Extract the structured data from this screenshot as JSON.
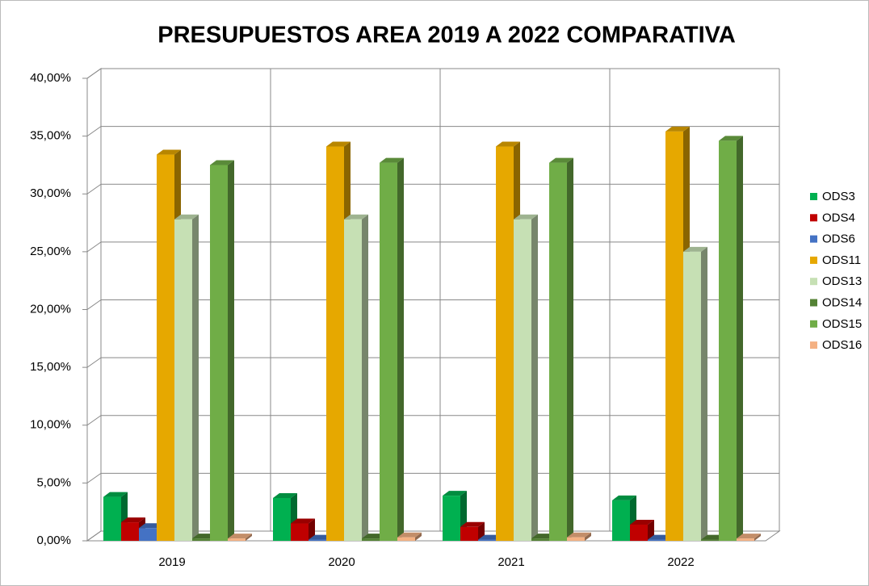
{
  "chart_data": {
    "type": "bar",
    "title": "PRESUPUESTOS AREA 2019 A 2022 COMPARATIVA",
    "categories": [
      "2019",
      "2020",
      "2021",
      "2022"
    ],
    "series": [
      {
        "name": "ODS3",
        "color": "#00b050",
        "values": [
          3.8,
          3.7,
          3.9,
          3.5
        ]
      },
      {
        "name": "ODS4",
        "color": "#c00000",
        "values": [
          1.6,
          1.5,
          1.2,
          1.4
        ]
      },
      {
        "name": "ODS6",
        "color": "#4472c4",
        "values": [
          1.1,
          0.1,
          0.1,
          0.1
        ]
      },
      {
        "name": "ODS11",
        "color": "#e6a800",
        "values": [
          33.4,
          34.1,
          34.1,
          35.4
        ]
      },
      {
        "name": "ODS13",
        "color": "#c6e0b4",
        "values": [
          27.8,
          27.8,
          27.8,
          25.0
        ]
      },
      {
        "name": "ODS14",
        "color": "#548235",
        "values": [
          0.2,
          0.2,
          0.2,
          0.1
        ]
      },
      {
        "name": "ODS15",
        "color": "#70ad47",
        "values": [
          32.5,
          32.7,
          32.7,
          34.6
        ]
      },
      {
        "name": "ODS16",
        "color": "#f4b183",
        "values": [
          0.2,
          0.3,
          0.3,
          0.2
        ]
      }
    ],
    "ylim": [
      0,
      40
    ],
    "yticks": [
      {
        "value": 0,
        "label": "0,00%"
      },
      {
        "value": 5,
        "label": "5,00%"
      },
      {
        "value": 10,
        "label": "10,00%"
      },
      {
        "value": 15,
        "label": "15,00%"
      },
      {
        "value": 20,
        "label": "20,00%"
      },
      {
        "value": 25,
        "label": "25,00%"
      },
      {
        "value": 30,
        "label": "30,00%"
      },
      {
        "value": 35,
        "label": "35,00%"
      },
      {
        "value": 40,
        "label": "40,00%"
      }
    ],
    "grid": true,
    "legend": "right"
  }
}
